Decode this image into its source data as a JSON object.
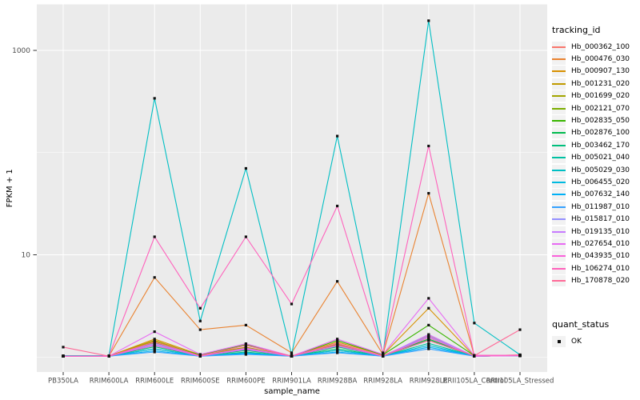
{
  "figure": {
    "bg": "#ffffff",
    "panel_bg": "#ebebeb",
    "grid_color": "#ffffff",
    "tick_color": "#333333",
    "tick_label_color": "#4d4d4d",
    "point_color": "#111111"
  },
  "legend_tracking": {
    "title": "tracking_id"
  },
  "legend_quant": {
    "title": "quant_status",
    "items": [
      {
        "label": "OK"
      }
    ]
  },
  "chart_data": {
    "type": "line",
    "title": "",
    "xlabel": "sample_name",
    "ylabel": "FPKM + 1",
    "y_scale": "log10",
    "ylim": [
      0.75,
      2800
    ],
    "y_ticks": [
      {
        "value": 10,
        "label": "10"
      },
      {
        "value": 1000,
        "label": "1000"
      }
    ],
    "y_minor": [
      1,
      100
    ],
    "grid": true,
    "legend_position": "right",
    "point_shape": "square",
    "categories": [
      "PB350LA",
      "RRIM600LA",
      "RRIM600LE",
      "RRIM600SE",
      "RRIM600PE",
      "RRIM901LA",
      "RRIM928BA",
      "RRIM928LA",
      "RRIM928LE",
      "RRII105LA_Control",
      "RRII105LA_Stressed"
    ],
    "series": [
      {
        "name": "Hb_000362_100",
        "color": "#F8766D",
        "values": [
          1.02,
          1.02,
          1.45,
          1.03,
          1.22,
          1.02,
          1.32,
          1.03,
          1.62,
          1.02,
          1.05
        ]
      },
      {
        "name": "Hb_000476_030",
        "color": "#EA8331",
        "values": [
          1.02,
          1.02,
          6.0,
          1.85,
          2.05,
          1.1,
          5.5,
          1.06,
          40,
          1.03,
          1.03
        ]
      },
      {
        "name": "Hb_000907_130",
        "color": "#D89000",
        "values": [
          1.02,
          1.02,
          1.5,
          1.05,
          1.25,
          1.02,
          1.4,
          1.05,
          3.0,
          1.02,
          1.04
        ]
      },
      {
        "name": "Hb_001231_020",
        "color": "#C09B00",
        "values": [
          1.02,
          1.02,
          1.42,
          1.02,
          1.2,
          1.02,
          1.3,
          1.02,
          1.55,
          1.02,
          1.03
        ]
      },
      {
        "name": "Hb_001699_020",
        "color": "#A3A500",
        "values": [
          1.02,
          1.02,
          1.45,
          1.03,
          1.24,
          1.02,
          1.34,
          1.03,
          1.5,
          1.02,
          1.03
        ]
      },
      {
        "name": "Hb_002121_070",
        "color": "#7CAE00",
        "values": [
          1.02,
          1.02,
          1.36,
          1.02,
          1.2,
          1.02,
          1.3,
          1.02,
          1.46,
          1.02,
          1.03
        ]
      },
      {
        "name": "Hb_002835_050",
        "color": "#39B600",
        "values": [
          1.02,
          1.02,
          1.38,
          1.05,
          1.32,
          1.02,
          1.45,
          1.05,
          2.05,
          1.03,
          1.04
        ]
      },
      {
        "name": "Hb_002876_100",
        "color": "#00BB4E",
        "values": [
          1.02,
          1.02,
          1.3,
          1.02,
          1.16,
          1.02,
          1.26,
          1.02,
          1.5,
          1.02,
          1.03
        ]
      },
      {
        "name": "Hb_003462_170",
        "color": "#00BF7D",
        "values": [
          1.02,
          1.02,
          1.26,
          1.02,
          1.12,
          1.02,
          1.2,
          1.02,
          1.46,
          1.02,
          1.03
        ]
      },
      {
        "name": "Hb_005021_040",
        "color": "#00C1A3",
        "values": [
          1.02,
          1.02,
          1.2,
          1.02,
          1.1,
          1.02,
          1.16,
          1.02,
          1.36,
          1.02,
          1.03
        ]
      },
      {
        "name": "Hb_005029_030",
        "color": "#00BFC4",
        "values": [
          1.03,
          1.03,
          340,
          2.25,
          70,
          1.06,
          145,
          1.06,
          1950,
          2.15,
          1.05
        ]
      },
      {
        "name": "Hb_006455_020",
        "color": "#00BAE0",
        "values": [
          1.02,
          1.02,
          1.2,
          1.02,
          1.1,
          1.02,
          1.16,
          1.02,
          1.3,
          1.02,
          1.03
        ]
      },
      {
        "name": "Hb_007632_140",
        "color": "#00B0F6",
        "values": [
          1.02,
          1.02,
          1.15,
          1.02,
          1.08,
          1.02,
          1.12,
          1.02,
          1.25,
          1.02,
          1.04
        ]
      },
      {
        "name": "Hb_011987_010",
        "color": "#35A2FF",
        "values": [
          1.02,
          1.02,
          1.12,
          1.02,
          1.06,
          1.02,
          1.1,
          1.02,
          1.2,
          1.02,
          1.03
        ]
      },
      {
        "name": "Hb_015817_010",
        "color": "#9590FF",
        "values": [
          1.02,
          1.02,
          1.32,
          1.02,
          1.18,
          1.02,
          1.28,
          1.02,
          1.6,
          1.02,
          1.03
        ]
      },
      {
        "name": "Hb_019135_010",
        "color": "#C77CFF",
        "values": [
          1.02,
          1.02,
          1.36,
          1.02,
          1.22,
          1.02,
          1.36,
          1.02,
          1.66,
          1.02,
          1.03
        ]
      },
      {
        "name": "Hb_027654_010",
        "color": "#E76BF3",
        "values": [
          1.02,
          1.02,
          1.77,
          1.06,
          1.35,
          1.02,
          1.5,
          1.06,
          3.75,
          1.03,
          1.04
        ]
      },
      {
        "name": "Hb_043935_010",
        "color": "#FA62DB",
        "values": [
          1.02,
          1.02,
          1.3,
          1.02,
          1.2,
          1.02,
          1.3,
          1.02,
          1.55,
          1.02,
          1.03
        ]
      },
      {
        "name": "Hb_106274_010",
        "color": "#FF62BC",
        "values": [
          1.02,
          1.02,
          15,
          3.0,
          15,
          3.3,
          30,
          1.1,
          116,
          1.04,
          1.04
        ]
      },
      {
        "name": "Hb_170878_020",
        "color": "#FF6A98",
        "values": [
          1.25,
          1.02,
          1.4,
          1.03,
          1.3,
          1.02,
          1.36,
          1.03,
          1.45,
          1.03,
          1.85
        ]
      }
    ]
  }
}
